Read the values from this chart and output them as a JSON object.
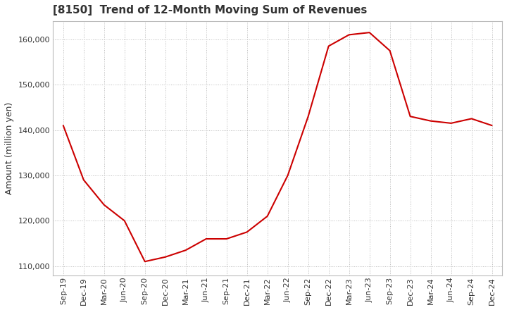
{
  "title": "[8150]  Trend of 12-Month Moving Sum of Revenues",
  "ylabel": "Amount (million yen)",
  "line_color": "#cc0000",
  "background_color": "#ffffff",
  "plot_bg_color": "#ffffff",
  "grid_color": "#bbbbbb",
  "ylim": [
    108000,
    164000
  ],
  "yticks": [
    110000,
    120000,
    130000,
    140000,
    150000,
    160000
  ],
  "x_labels": [
    "Sep-19",
    "Dec-19",
    "Mar-20",
    "Jun-20",
    "Sep-20",
    "Dec-20",
    "Mar-21",
    "Jun-21",
    "Sep-21",
    "Dec-21",
    "Mar-22",
    "Jun-22",
    "Sep-22",
    "Dec-22",
    "Mar-23",
    "Jun-23",
    "Sep-23",
    "Dec-23",
    "Mar-24",
    "Jun-24",
    "Sep-24",
    "Dec-24"
  ],
  "values": [
    141000,
    129000,
    123500,
    120000,
    111000,
    112000,
    113500,
    116000,
    116000,
    117500,
    121000,
    130000,
    143000,
    158500,
    161000,
    161500,
    157500,
    143000,
    142000,
    141500,
    142500,
    141000
  ],
  "title_color": "#333333",
  "title_fontsize": 11,
  "tick_fontsize": 8,
  "ylabel_fontsize": 9
}
